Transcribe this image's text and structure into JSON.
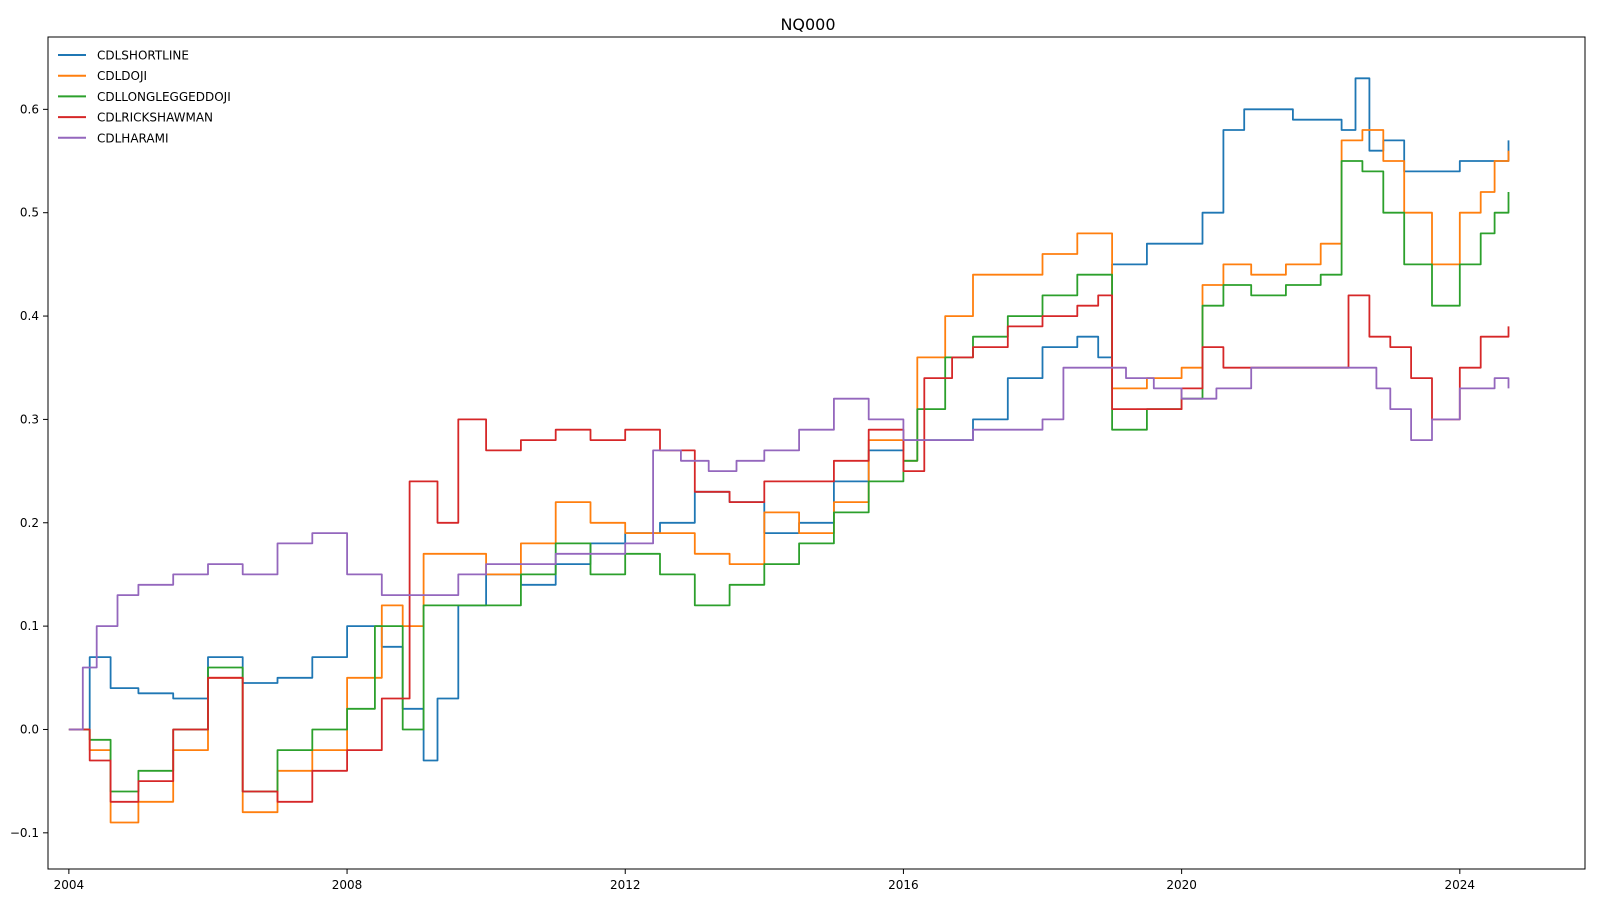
{
  "chart_data": {
    "type": "line",
    "title": "NQ000",
    "xlabel": "",
    "ylabel": "",
    "xlim": [
      2003.7,
      2025.8
    ],
    "ylim": [
      -0.135,
      0.67
    ],
    "x_ticks": [
      2004,
      2008,
      2012,
      2016,
      2020,
      2024
    ],
    "x_tick_labels": [
      "2004",
      "2008",
      "2012",
      "2016",
      "2020",
      "2024"
    ],
    "y_ticks": [
      -0.1,
      0.0,
      0.1,
      0.2,
      0.3,
      0.4,
      0.5,
      0.6
    ],
    "y_tick_labels": [
      "−0.1",
      "0.0",
      "0.1",
      "0.2",
      "0.3",
      "0.4",
      "0.5",
      "0.6"
    ],
    "grid": false,
    "legend_position": "upper-left",
    "series": [
      {
        "name": "CDLSHORTLINE",
        "color": "#1f77b4",
        "x": [
          2004.0,
          2004.3,
          2004.6,
          2005.0,
          2005.5,
          2006.0,
          2006.5,
          2007.0,
          2007.5,
          2008.0,
          2008.5,
          2008.8,
          2009.1,
          2009.3,
          2009.6,
          2010.0,
          2010.5,
          2011.0,
          2011.5,
          2012.0,
          2012.5,
          2013.0,
          2013.5,
          2014.0,
          2014.5,
          2015.0,
          2015.5,
          2016.0,
          2016.5,
          2017.0,
          2017.5,
          2018.0,
          2018.5,
          2018.8,
          2019.0,
          2019.5,
          2020.0,
          2020.3,
          2020.6,
          2020.9,
          2021.2,
          2021.6,
          2022.0,
          2022.3,
          2022.5,
          2022.7,
          2022.9,
          2023.2,
          2023.6,
          2024.0,
          2024.4,
          2024.7
        ],
        "values": [
          0.0,
          0.07,
          0.04,
          0.035,
          0.03,
          0.07,
          0.045,
          0.05,
          0.07,
          0.1,
          0.08,
          0.02,
          -0.03,
          0.03,
          0.12,
          0.15,
          0.14,
          0.16,
          0.18,
          0.19,
          0.2,
          0.23,
          0.22,
          0.19,
          0.2,
          0.24,
          0.27,
          0.28,
          0.28,
          0.3,
          0.34,
          0.37,
          0.38,
          0.36,
          0.45,
          0.47,
          0.47,
          0.5,
          0.58,
          0.6,
          0.6,
          0.59,
          0.59,
          0.58,
          0.63,
          0.56,
          0.57,
          0.54,
          0.54,
          0.55,
          0.55,
          0.57
        ]
      },
      {
        "name": "CDLDOJI",
        "color": "#ff7f0e",
        "x": [
          2004.0,
          2004.3,
          2004.6,
          2005.0,
          2005.5,
          2006.0,
          2006.5,
          2007.0,
          2007.5,
          2008.0,
          2008.5,
          2008.8,
          2009.1,
          2009.5,
          2010.0,
          2010.5,
          2011.0,
          2011.5,
          2012.0,
          2012.5,
          2013.0,
          2013.5,
          2014.0,
          2014.5,
          2015.0,
          2015.5,
          2016.0,
          2016.2,
          2016.6,
          2017.0,
          2017.5,
          2018.0,
          2018.5,
          2018.8,
          2019.0,
          2019.5,
          2020.0,
          2020.3,
          2020.6,
          2021.0,
          2021.5,
          2022.0,
          2022.3,
          2022.6,
          2022.9,
          2023.2,
          2023.6,
          2024.0,
          2024.3,
          2024.5,
          2024.7
        ],
        "values": [
          0.0,
          -0.02,
          -0.09,
          -0.07,
          -0.02,
          0.05,
          -0.08,
          -0.04,
          -0.02,
          0.05,
          0.12,
          0.1,
          0.17,
          0.17,
          0.15,
          0.18,
          0.22,
          0.2,
          0.19,
          0.19,
          0.17,
          0.16,
          0.21,
          0.19,
          0.22,
          0.28,
          0.26,
          0.36,
          0.4,
          0.44,
          0.44,
          0.46,
          0.48,
          0.48,
          0.33,
          0.34,
          0.35,
          0.43,
          0.45,
          0.44,
          0.45,
          0.47,
          0.57,
          0.58,
          0.55,
          0.5,
          0.45,
          0.5,
          0.52,
          0.55,
          0.56
        ]
      },
      {
        "name": "CDLLONGLEGGEDDOJI",
        "color": "#2ca02c",
        "x": [
          2004.0,
          2004.3,
          2004.6,
          2005.0,
          2005.5,
          2006.0,
          2006.5,
          2007.0,
          2007.5,
          2008.0,
          2008.4,
          2008.8,
          2009.1,
          2009.5,
          2010.0,
          2010.5,
          2011.0,
          2011.5,
          2012.0,
          2012.5,
          2013.0,
          2013.5,
          2014.0,
          2014.5,
          2015.0,
          2015.5,
          2016.0,
          2016.2,
          2016.6,
          2017.0,
          2017.5,
          2018.0,
          2018.5,
          2018.8,
          2019.0,
          2019.5,
          2020.0,
          2020.3,
          2020.6,
          2021.0,
          2021.5,
          2022.0,
          2022.3,
          2022.6,
          2022.9,
          2023.2,
          2023.6,
          2024.0,
          2024.3,
          2024.5,
          2024.7
        ],
        "values": [
          0.0,
          -0.01,
          -0.06,
          -0.04,
          0.0,
          0.06,
          -0.06,
          -0.02,
          0.0,
          0.02,
          0.1,
          0.0,
          0.12,
          0.12,
          0.12,
          0.15,
          0.18,
          0.15,
          0.17,
          0.15,
          0.12,
          0.14,
          0.16,
          0.18,
          0.21,
          0.24,
          0.26,
          0.31,
          0.36,
          0.38,
          0.4,
          0.42,
          0.44,
          0.44,
          0.29,
          0.31,
          0.32,
          0.41,
          0.43,
          0.42,
          0.43,
          0.44,
          0.55,
          0.54,
          0.5,
          0.45,
          0.41,
          0.45,
          0.48,
          0.5,
          0.52
        ]
      },
      {
        "name": "CDLRICKSHAWMAN",
        "color": "#d62728",
        "x": [
          2004.0,
          2004.3,
          2004.6,
          2005.0,
          2005.5,
          2006.0,
          2006.5,
          2007.0,
          2007.5,
          2008.0,
          2008.5,
          2008.9,
          2009.3,
          2009.6,
          2010.0,
          2010.5,
          2011.0,
          2011.5,
          2012.0,
          2012.5,
          2013.0,
          2013.5,
          2014.0,
          2014.5,
          2015.0,
          2015.5,
          2016.0,
          2016.3,
          2016.7,
          2017.0,
          2017.5,
          2018.0,
          2018.5,
          2018.8,
          2019.0,
          2019.5,
          2020.0,
          2020.3,
          2020.6,
          2021.0,
          2021.5,
          2022.0,
          2022.4,
          2022.7,
          2023.0,
          2023.3,
          2023.6,
          2024.0,
          2024.3,
          2024.5,
          2024.7
        ],
        "values": [
          0.0,
          -0.03,
          -0.07,
          -0.05,
          0.0,
          0.05,
          -0.06,
          -0.07,
          -0.04,
          -0.02,
          0.03,
          0.24,
          0.2,
          0.3,
          0.27,
          0.28,
          0.29,
          0.28,
          0.29,
          0.27,
          0.23,
          0.22,
          0.24,
          0.24,
          0.26,
          0.29,
          0.25,
          0.34,
          0.36,
          0.37,
          0.39,
          0.4,
          0.41,
          0.42,
          0.31,
          0.31,
          0.33,
          0.37,
          0.35,
          0.35,
          0.35,
          0.35,
          0.42,
          0.38,
          0.37,
          0.34,
          0.3,
          0.35,
          0.38,
          0.38,
          0.39
        ]
      },
      {
        "name": "CDLHARAMI",
        "color": "#9467bd",
        "x": [
          2004.0,
          2004.2,
          2004.4,
          2004.7,
          2005.0,
          2005.5,
          2006.0,
          2006.5,
          2007.0,
          2007.5,
          2008.0,
          2008.5,
          2008.8,
          2009.2,
          2009.6,
          2010.0,
          2010.5,
          2011.0,
          2011.5,
          2012.0,
          2012.4,
          2012.8,
          2013.2,
          2013.6,
          2014.0,
          2014.5,
          2015.0,
          2015.5,
          2016.0,
          2016.5,
          2017.0,
          2017.5,
          2018.0,
          2018.3,
          2018.8,
          2019.2,
          2019.6,
          2020.0,
          2020.5,
          2021.0,
          2021.5,
          2022.0,
          2022.5,
          2022.8,
          2023.0,
          2023.3,
          2023.6,
          2024.0,
          2024.3,
          2024.5,
          2024.7
        ],
        "values": [
          0.0,
          0.06,
          0.1,
          0.13,
          0.14,
          0.15,
          0.16,
          0.15,
          0.18,
          0.19,
          0.15,
          0.13,
          0.13,
          0.13,
          0.15,
          0.16,
          0.16,
          0.17,
          0.17,
          0.18,
          0.27,
          0.26,
          0.25,
          0.26,
          0.27,
          0.29,
          0.32,
          0.3,
          0.28,
          0.28,
          0.29,
          0.29,
          0.3,
          0.35,
          0.35,
          0.34,
          0.33,
          0.32,
          0.33,
          0.35,
          0.35,
          0.35,
          0.35,
          0.33,
          0.31,
          0.28,
          0.3,
          0.33,
          0.33,
          0.34,
          0.33
        ]
      }
    ]
  }
}
